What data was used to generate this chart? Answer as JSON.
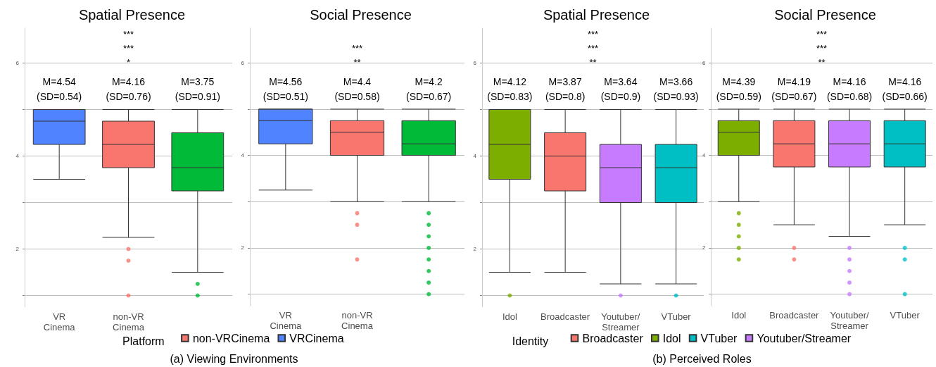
{
  "chart_data": [
    {
      "type": "box",
      "title": "Spatial Presence",
      "subtitle": "(a) Viewing Environments",
      "legend_title": "Platform",
      "legend": "bottom",
      "grid": "y",
      "categories": [
        "VR Cinema",
        "non-VR Cinema",
        null
      ],
      "ylim": [
        0.75,
        6.75
      ],
      "yticks": [
        {
          "value": 1,
          "label": null
        },
        2,
        {
          "value": 3,
          "label": null
        },
        4,
        {
          "value": 5,
          "label": null
        },
        6
      ],
      "series": [
        {
          "name": "non-VRCinema",
          "color": "#f8766d",
          "boxes": [
            null,
            {
              "low": 2.25,
              "q1": 3.75,
              "median": 4.25,
              "q3": 4.75,
              "high": 5,
              "outliers": [
                2,
                1.75,
                1
              ]
            },
            null
          ]
        },
        {
          "color": "#00ba38",
          "boxes": [
            null,
            null,
            {
              "low": 1.5,
              "q1": 3.25,
              "median": 3.75,
              "q3": 4.5,
              "high": 5,
              "outliers": [
                1.25,
                1
              ]
            }
          ]
        },
        {
          "name": "VRCinema",
          "color": "#4f83ff",
          "boxes": [
            {
              "low": 3.5,
              "q1": 4.25,
              "median": 4.75,
              "q3": 5,
              "high": 5
            },
            null,
            null
          ]
        }
      ],
      "annotations": [
        "***",
        "***",
        "*",
        "M=4.54\n(SD=0.54)",
        "M=4.16\n(SD=0.76)",
        "M=3.75\n(SD=0.91)"
      ]
    },
    {
      "type": "box",
      "title": "Social Presence",
      "grid": "y",
      "categories": [
        "VR Cinema",
        "non-VR Cinema",
        null
      ],
      "ylim": [
        0.75,
        6.75
      ],
      "yticks": [
        {
          "value": 1,
          "label": null
        },
        2,
        {
          "value": 3,
          "label": null
        },
        4,
        {
          "value": 5,
          "label": null
        },
        6
      ],
      "series": [
        {
          "color": "#f8766d",
          "boxes": [
            null,
            {
              "low": 3,
              "q1": 4,
              "median": 4.5,
              "q3": 4.75,
              "high": 5,
              "outliers": [
                2.75,
                2.5,
                1.75
              ]
            },
            null
          ]
        },
        {
          "color": "#00ba38",
          "boxes": [
            null,
            null,
            {
              "low": 3,
              "q1": 4,
              "median": 4.25,
              "q3": 4.75,
              "high": 5,
              "outliers": [
                2.75,
                2.5,
                2.25,
                2,
                1.75,
                1.5,
                1.25,
                1
              ]
            }
          ]
        },
        {
          "color": "#4f83ff",
          "boxes": [
            {
              "low": 3.25,
              "q1": 4.25,
              "median": 4.75,
              "q3": 5,
              "high": 5
            },
            null,
            null
          ]
        }
      ],
      "annotations": [
        "***",
        "**",
        "M=4.56\n(SD=0.51)",
        "M=4.4\n(SD=0.58)",
        "M=4.2\n(SD=0.67)"
      ]
    },
    {
      "type": "box",
      "title": "Spatial Presence",
      "subtitle": "(b) Perceived Roles",
      "legend_title": "Identity",
      "legend": "bottom",
      "grid": "y",
      "categories": [
        "Idol",
        "Broadcaster",
        "Youtuber/Streamer",
        "VTuber"
      ],
      "ylim": [
        0.75,
        6.75
      ],
      "yticks": [
        {
          "value": 1,
          "label": null
        },
        2,
        {
          "value": 3,
          "label": null
        },
        4,
        {
          "value": 5,
          "label": null
        },
        6
      ],
      "series": [
        {
          "name": "Broadcaster",
          "color": "#f8766d",
          "boxes": [
            null,
            {
              "low": 1.5,
              "q1": 3.25,
              "median": 4,
              "q3": 4.5,
              "high": 5
            },
            null,
            null
          ]
        },
        {
          "name": "Idol",
          "color": "#7cae00",
          "boxes": [
            {
              "low": 1.5,
              "q1": 3.5,
              "median": 4.25,
              "q3": 5,
              "high": 5,
              "outliers": [
                1
              ]
            },
            null,
            null,
            null
          ]
        },
        {
          "name": "VTuber",
          "color": "#00bfc4",
          "boxes": [
            null,
            null,
            null,
            {
              "low": 1.25,
              "q1": 3,
              "median": 3.75,
              "q3": 4.25,
              "high": 5,
              "outliers": [
                1
              ]
            }
          ]
        },
        {
          "name": "Youtuber/Streamer",
          "color": "#c77cff",
          "boxes": [
            null,
            null,
            {
              "low": 1.25,
              "q1": 3,
              "median": 3.75,
              "q3": 4.25,
              "high": 5,
              "outliers": [
                1
              ]
            },
            null
          ]
        }
      ],
      "annotations": [
        "***",
        "***",
        "**",
        "M=4.12\n(SD=0.83)",
        "M=3.87\n(SD=0.8)",
        "M=3.64\n(SD=0.9)",
        "M=3.66\n(SD=0.93)"
      ]
    },
    {
      "type": "box",
      "title": "Social Presence",
      "grid": "y",
      "categories": [
        "Idol",
        "Broadcaster",
        "Youtuber/Streamer",
        "VTuber"
      ],
      "ylim": [
        0.75,
        6.75
      ],
      "yticks": [
        {
          "value": 1,
          "label": null
        },
        2,
        {
          "value": 3,
          "label": null
        },
        4,
        {
          "value": 5,
          "label": null
        },
        6
      ],
      "series": [
        {
          "color": "#f8766d",
          "boxes": [
            null,
            {
              "low": 2.5,
              "q1": 3.75,
              "median": 4.25,
              "q3": 4.75,
              "high": 5,
              "outliers": [
                2,
                1.75
              ]
            },
            null,
            null
          ]
        },
        {
          "color": "#7cae00",
          "boxes": [
            {
              "low": 3,
              "q1": 4,
              "median": 4.5,
              "q3": 4.75,
              "high": 5,
              "outliers": [
                2.75,
                2.5,
                2.25,
                2,
                1.75
              ]
            },
            null,
            null,
            null
          ]
        },
        {
          "color": "#00bfc4",
          "boxes": [
            null,
            null,
            null,
            {
              "low": 2.5,
              "q1": 3.75,
              "median": 4.25,
              "q3": 4.75,
              "high": 5,
              "outliers": [
                2,
                1.75,
                1
              ]
            }
          ]
        },
        {
          "color": "#c77cff",
          "boxes": [
            null,
            null,
            {
              "low": 2.25,
              "q1": 3.75,
              "median": 4.25,
              "q3": 4.75,
              "high": 5,
              "outliers": [
                2,
                1.75,
                1.5,
                1.25,
                1
              ]
            },
            null
          ]
        }
      ],
      "annotations": [
        "***",
        "***",
        "**",
        "M=4.39\n(SD=0.59)",
        "M=4.19\n(SD=0.67)",
        "M=4.16\n(SD=0.68)",
        "M=4.16\n(SD=0.66)"
      ]
    }
  ]
}
